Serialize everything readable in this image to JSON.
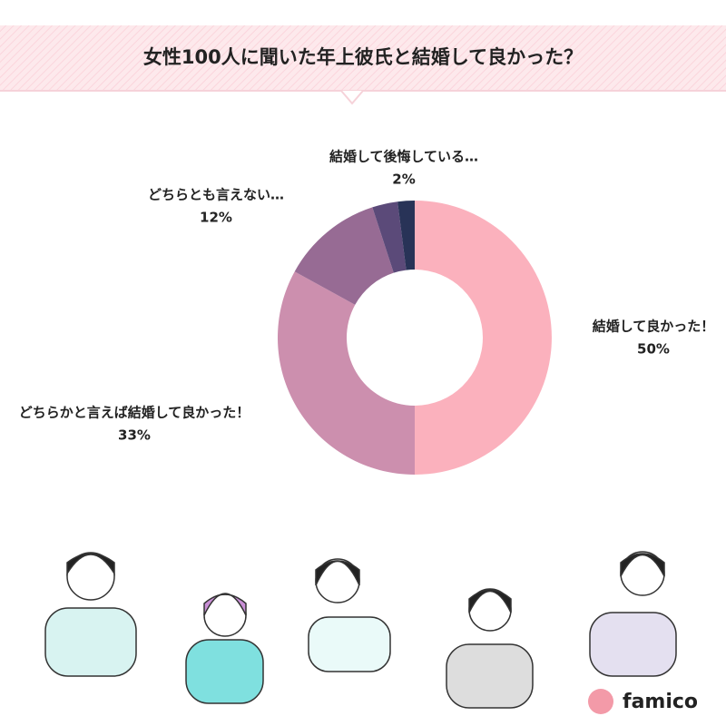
{
  "chart_data": {
    "type": "donut",
    "title": "女性100人に聞いた年上彼氏と結婚して良かった？",
    "categories": [
      "結婚して良かった！",
      "どちらかと言えば結婚して良かった！",
      "どちらとも言えない…",
      null,
      "結婚して後悔している…"
    ],
    "values": [
      50,
      33,
      12,
      3,
      2
    ],
    "value_labels": [
      "50%",
      "33%",
      "12%",
      null,
      "2%"
    ],
    "colors": [
      "#fbb1bd",
      "#cc8fae",
      "#976b94",
      "#5b4a79",
      "#283357"
    ]
  },
  "logo": "famico"
}
